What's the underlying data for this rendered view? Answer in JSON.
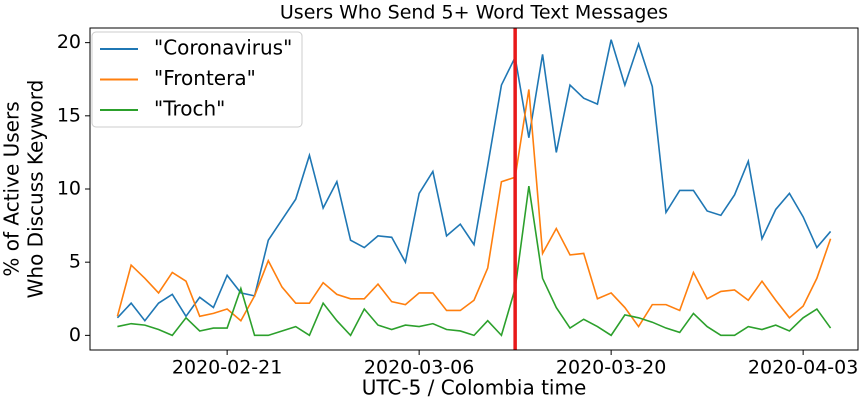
{
  "chart_data": {
    "type": "line",
    "title": "Users Who Send 5+ Word Text Messages",
    "xlabel": "UTC-5 / Colombia time",
    "ylabel": [
      "% of Active Users",
      "Who Discuss Keyword"
    ],
    "x": [
      "2020-02-13",
      "2020-02-14",
      "2020-02-15",
      "2020-02-16",
      "2020-02-17",
      "2020-02-18",
      "2020-02-19",
      "2020-02-20",
      "2020-02-21",
      "2020-02-22",
      "2020-02-23",
      "2020-02-24",
      "2020-02-25",
      "2020-02-26",
      "2020-02-27",
      "2020-02-28",
      "2020-02-29",
      "2020-03-01",
      "2020-03-02",
      "2020-03-03",
      "2020-03-04",
      "2020-03-05",
      "2020-03-06",
      "2020-03-07",
      "2020-03-08",
      "2020-03-09",
      "2020-03-10",
      "2020-03-11",
      "2020-03-12",
      "2020-03-13",
      "2020-03-14",
      "2020-03-15",
      "2020-03-16",
      "2020-03-17",
      "2020-03-18",
      "2020-03-19",
      "2020-03-20",
      "2020-03-21",
      "2020-03-22",
      "2020-03-23",
      "2020-03-24",
      "2020-03-25",
      "2020-03-26",
      "2020-03-27",
      "2020-03-28",
      "2020-03-29",
      "2020-03-30",
      "2020-03-31",
      "2020-04-01",
      "2020-04-02",
      "2020-04-03",
      "2020-04-04",
      "2020-04-05"
    ],
    "series": [
      {
        "name": "\"Coronavirus\"",
        "color": "#1f77b4",
        "values": [
          1.2,
          2.2,
          1.0,
          2.2,
          2.8,
          1.3,
          2.6,
          1.9,
          4.1,
          2.9,
          2.7,
          6.5,
          7.9,
          9.3,
          12.3,
          8.7,
          10.5,
          6.5,
          6.0,
          6.8,
          6.7,
          5.0,
          9.7,
          11.2,
          6.8,
          7.6,
          6.2,
          11.6,
          17.1,
          19.0,
          13.5,
          19.2,
          12.5,
          17.1,
          16.2,
          15.8,
          20.2,
          17.1,
          19.9,
          17.0,
          8.4,
          9.9,
          9.9,
          8.5,
          8.2,
          9.6,
          11.9,
          6.6,
          8.6,
          9.7,
          8.1,
          6.0,
          7.1
        ]
      },
      {
        "name": "\"Frontera\"",
        "color": "#ff7f0e",
        "values": [
          1.3,
          4.8,
          3.9,
          2.9,
          4.3,
          3.7,
          1.3,
          1.5,
          1.8,
          1.0,
          2.7,
          5.1,
          3.3,
          2.2,
          2.2,
          3.6,
          2.8,
          2.5,
          2.5,
          3.5,
          2.3,
          2.1,
          2.9,
          2.9,
          1.7,
          1.7,
          2.4,
          4.6,
          10.5,
          10.8,
          16.8,
          5.6,
          7.3,
          5.5,
          5.6,
          2.5,
          2.9,
          1.9,
          0.6,
          2.1,
          2.1,
          1.7,
          4.3,
          2.5,
          3.0,
          3.1,
          2.4,
          3.7,
          2.4,
          1.2,
          2.0,
          3.9,
          6.6
        ]
      },
      {
        "name": "\"Troch\"",
        "color": "#2ca02c",
        "values": [
          0.6,
          0.8,
          0.7,
          0.4,
          0.0,
          1.2,
          0.3,
          0.5,
          0.5,
          3.2,
          0.0,
          0.0,
          0.3,
          0.6,
          0.0,
          2.2,
          1.0,
          0.0,
          1.8,
          0.7,
          0.4,
          0.7,
          0.6,
          0.8,
          0.4,
          0.3,
          0.0,
          1.0,
          0.0,
          3.2,
          10.2,
          3.9,
          1.9,
          0.5,
          1.1,
          0.6,
          0.0,
          1.4,
          1.2,
          0.9,
          0.5,
          0.2,
          1.5,
          0.6,
          0.0,
          0.0,
          0.6,
          0.4,
          0.7,
          0.3,
          1.2,
          1.8,
          0.5
        ]
      }
    ],
    "xlim": [
      "2020-02-11",
      "2020-04-07"
    ],
    "xticks": [
      "2020-02-21",
      "2020-03-06",
      "2020-03-20",
      "2020-04-03"
    ],
    "ylim": [
      -1,
      21
    ],
    "yticks": [
      0,
      5,
      10,
      15,
      20
    ],
    "vline": {
      "x": "2020-03-13",
      "color": "#e8191a"
    },
    "legend": "upper left",
    "grid": false
  }
}
